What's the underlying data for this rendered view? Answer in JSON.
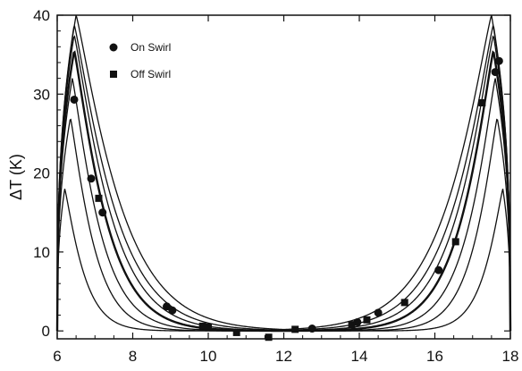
{
  "chart_data": {
    "type": "line+scatter",
    "xlim": [
      6,
      18
    ],
    "ylim": [
      -1,
      40
    ],
    "xticks": [
      "6",
      "8",
      "10",
      "12",
      "14",
      "16",
      "18"
    ],
    "yticks": [
      "0",
      "10",
      "20",
      "30",
      "40"
    ],
    "ylabel": "ΔT (K)",
    "legend": [
      {
        "label": "On Swirl",
        "marker": "circle"
      },
      {
        "label": "Off Swirl",
        "marker": "square"
      }
    ],
    "legend_position": "top-left",
    "curve_family": {
      "center_x": 12,
      "peak_values": [
        18,
        27,
        32,
        35.5,
        37.5,
        38.8,
        40
      ],
      "peak_offsets": [
        5.8,
        5.65,
        5.6,
        5.55,
        5.55,
        5.55,
        5.5
      ],
      "edge_x": [
        6,
        18
      ]
    },
    "series": [
      {
        "name": "On Swirl",
        "marker": "circle",
        "points": [
          [
            6.45,
            29.3
          ],
          [
            6.9,
            19.3
          ],
          [
            7.2,
            15.0
          ],
          [
            8.9,
            3.1
          ],
          [
            9.05,
            2.6
          ],
          [
            12.75,
            0.3
          ],
          [
            13.95,
            1.1
          ],
          [
            14.5,
            2.3
          ],
          [
            16.1,
            7.7
          ],
          [
            17.6,
            32.8
          ],
          [
            17.7,
            34.2
          ]
        ]
      },
      {
        "name": "Off Swirl",
        "marker": "square",
        "points": [
          [
            7.1,
            16.8
          ],
          [
            9.85,
            0.6
          ],
          [
            10.0,
            0.5
          ],
          [
            10.75,
            -0.2
          ],
          [
            11.6,
            -0.8
          ],
          [
            12.3,
            0.2
          ],
          [
            13.8,
            0.8
          ],
          [
            14.2,
            1.4
          ],
          [
            15.2,
            3.6
          ],
          [
            16.55,
            11.3
          ],
          [
            17.25,
            28.9
          ]
        ]
      }
    ]
  }
}
